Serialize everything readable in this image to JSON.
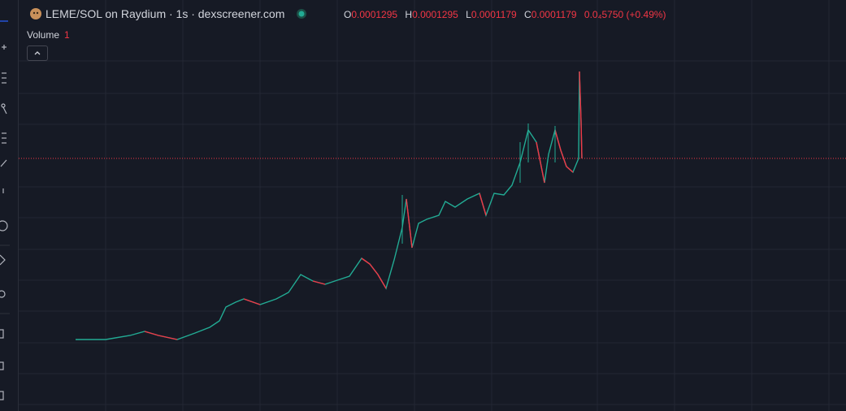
{
  "header": {
    "title": "LEME/SOL on Raydium · 1s · dexscreener.com",
    "ohlc": [
      {
        "label": "O",
        "value": "0.0001295"
      },
      {
        "label": "H",
        "value": "0.0001295"
      },
      {
        "label": "L",
        "value": "0.0001179"
      },
      {
        "label": "C",
        "value": "0.0001179"
      }
    ],
    "change": "0.0₄5750 (+0.49%)"
  },
  "legend": {
    "label": "Volume",
    "value": "1"
  }
}
